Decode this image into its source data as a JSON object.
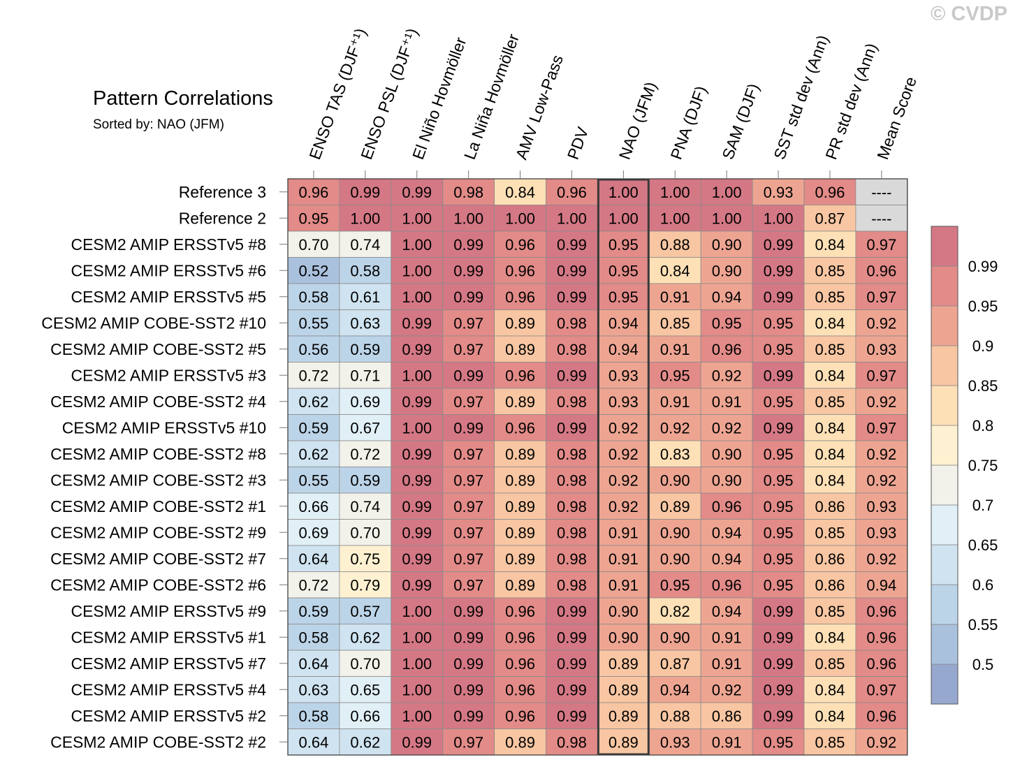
{
  "watermark": "© CVDP",
  "title": "Pattern Correlations",
  "subtitle": "Sorted by: NAO (JFM)",
  "chart_data": {
    "type": "heatmap",
    "columns": [
      "ENSO TAS (DJF⁺¹)",
      "ENSO PSL (DJF⁺¹)",
      "El Niño Hovmöller",
      "La Niña Hovmöller",
      "AMV Low-Pass",
      "PDV",
      "NAO (JFM)",
      "PNA (DJF)",
      "SAM (DJF)",
      "SST std dev (Ann)",
      "PR std dev (Ann)",
      "Mean Score"
    ],
    "highlighted_column": "NAO (JFM)",
    "rows": [
      {
        "label": "Reference 3",
        "values": [
          "0.96",
          "0.99",
          "0.99",
          "0.98",
          "0.84",
          "0.96",
          "1.00",
          "1.00",
          "1.00",
          "0.93",
          "0.96",
          "----"
        ]
      },
      {
        "label": "Reference 2",
        "values": [
          "0.95",
          "1.00",
          "1.00",
          "1.00",
          "1.00",
          "1.00",
          "1.00",
          "1.00",
          "1.00",
          "1.00",
          "0.87",
          "----"
        ]
      },
      {
        "label": "CESM2 AMIP ERSSTv5 #8",
        "values": [
          "0.70",
          "0.74",
          "1.00",
          "0.99",
          "0.96",
          "0.99",
          "0.95",
          "0.88",
          "0.90",
          "0.99",
          "0.84",
          "0.97"
        ]
      },
      {
        "label": "CESM2 AMIP ERSSTv5 #6",
        "values": [
          "0.52",
          "0.58",
          "1.00",
          "0.99",
          "0.96",
          "0.99",
          "0.95",
          "0.84",
          "0.90",
          "0.99",
          "0.85",
          "0.96"
        ]
      },
      {
        "label": "CESM2 AMIP ERSSTv5 #5",
        "values": [
          "0.58",
          "0.61",
          "1.00",
          "0.99",
          "0.96",
          "0.99",
          "0.95",
          "0.91",
          "0.94",
          "0.99",
          "0.85",
          "0.97"
        ]
      },
      {
        "label": "CESM2 AMIP COBE-SST2 #10",
        "values": [
          "0.55",
          "0.63",
          "0.99",
          "0.97",
          "0.89",
          "0.98",
          "0.94",
          "0.85",
          "0.95",
          "0.95",
          "0.84",
          "0.92"
        ]
      },
      {
        "label": "CESM2 AMIP COBE-SST2 #5",
        "values": [
          "0.56",
          "0.59",
          "0.99",
          "0.97",
          "0.89",
          "0.98",
          "0.94",
          "0.91",
          "0.96",
          "0.95",
          "0.85",
          "0.93"
        ]
      },
      {
        "label": "CESM2 AMIP ERSSTv5 #3",
        "values": [
          "0.72",
          "0.71",
          "1.00",
          "0.99",
          "0.96",
          "0.99",
          "0.93",
          "0.95",
          "0.92",
          "0.99",
          "0.84",
          "0.97"
        ]
      },
      {
        "label": "CESM2 AMIP COBE-SST2 #4",
        "values": [
          "0.62",
          "0.69",
          "0.99",
          "0.97",
          "0.89",
          "0.98",
          "0.93",
          "0.91",
          "0.91",
          "0.95",
          "0.85",
          "0.92"
        ]
      },
      {
        "label": "CESM2 AMIP ERSSTv5 #10",
        "values": [
          "0.59",
          "0.67",
          "1.00",
          "0.99",
          "0.96",
          "0.99",
          "0.92",
          "0.92",
          "0.92",
          "0.99",
          "0.84",
          "0.97"
        ]
      },
      {
        "label": "CESM2 AMIP COBE-SST2 #8",
        "values": [
          "0.62",
          "0.72",
          "0.99",
          "0.97",
          "0.89",
          "0.98",
          "0.92",
          "0.83",
          "0.90",
          "0.95",
          "0.84",
          "0.92"
        ]
      },
      {
        "label": "CESM2 AMIP COBE-SST2 #3",
        "values": [
          "0.55",
          "0.59",
          "0.99",
          "0.97",
          "0.89",
          "0.98",
          "0.92",
          "0.90",
          "0.90",
          "0.95",
          "0.84",
          "0.92"
        ]
      },
      {
        "label": "CESM2 AMIP COBE-SST2 #1",
        "values": [
          "0.66",
          "0.74",
          "0.99",
          "0.97",
          "0.89",
          "0.98",
          "0.92",
          "0.89",
          "0.96",
          "0.95",
          "0.86",
          "0.93"
        ]
      },
      {
        "label": "CESM2 AMIP COBE-SST2 #9",
        "values": [
          "0.69",
          "0.70",
          "0.99",
          "0.97",
          "0.89",
          "0.98",
          "0.91",
          "0.90",
          "0.94",
          "0.95",
          "0.85",
          "0.93"
        ]
      },
      {
        "label": "CESM2 AMIP COBE-SST2 #7",
        "values": [
          "0.64",
          "0.75",
          "0.99",
          "0.97",
          "0.89",
          "0.98",
          "0.91",
          "0.90",
          "0.94",
          "0.95",
          "0.86",
          "0.92"
        ]
      },
      {
        "label": "CESM2 AMIP COBE-SST2 #6",
        "values": [
          "0.72",
          "0.79",
          "0.99",
          "0.97",
          "0.89",
          "0.98",
          "0.91",
          "0.95",
          "0.96",
          "0.95",
          "0.86",
          "0.94"
        ]
      },
      {
        "label": "CESM2 AMIP ERSSTv5 #9",
        "values": [
          "0.59",
          "0.57",
          "1.00",
          "0.99",
          "0.96",
          "0.99",
          "0.90",
          "0.82",
          "0.94",
          "0.99",
          "0.85",
          "0.96"
        ]
      },
      {
        "label": "CESM2 AMIP ERSSTv5 #1",
        "values": [
          "0.58",
          "0.62",
          "1.00",
          "0.99",
          "0.96",
          "0.99",
          "0.90",
          "0.90",
          "0.91",
          "0.99",
          "0.84",
          "0.96"
        ]
      },
      {
        "label": "CESM2 AMIP ERSSTv5 #7",
        "values": [
          "0.64",
          "0.70",
          "1.00",
          "0.99",
          "0.96",
          "0.99",
          "0.89",
          "0.87",
          "0.91",
          "0.99",
          "0.85",
          "0.96"
        ]
      },
      {
        "label": "CESM2 AMIP ERSSTv5 #4",
        "values": [
          "0.63",
          "0.65",
          "1.00",
          "0.99",
          "0.96",
          "0.99",
          "0.89",
          "0.94",
          "0.92",
          "0.99",
          "0.84",
          "0.97"
        ]
      },
      {
        "label": "CESM2 AMIP ERSSTv5 #2",
        "values": [
          "0.58",
          "0.66",
          "1.00",
          "0.99",
          "0.96",
          "0.99",
          "0.89",
          "0.88",
          "0.86",
          "0.99",
          "0.84",
          "0.96"
        ]
      },
      {
        "label": "CESM2 AMIP COBE-SST2 #2",
        "values": [
          "0.64",
          "0.62",
          "0.99",
          "0.97",
          "0.89",
          "0.98",
          "0.89",
          "0.93",
          "0.91",
          "0.95",
          "0.85",
          "0.92"
        ]
      }
    ],
    "colorbar": {
      "levels": [
        0.5,
        0.55,
        0.6,
        0.65,
        0.7,
        0.75,
        0.8,
        0.85,
        0.9,
        0.95,
        0.99
      ],
      "labels": [
        "0.5",
        "0.55",
        "0.6",
        "0.65",
        "0.7",
        "0.75",
        "0.8",
        "0.85",
        "0.9",
        "0.95",
        "0.99"
      ],
      "colors": [
        "#96a8ce",
        "#aac1dd",
        "#bcd4e8",
        "#cfe3f0",
        "#e1eff6",
        "#f2f2ea",
        "#fdf1d1",
        "#fde0b6",
        "#f8c6a2",
        "#eda592",
        "#e28b88",
        "#d47885"
      ],
      "missing_color": "#d9d9d9"
    }
  }
}
